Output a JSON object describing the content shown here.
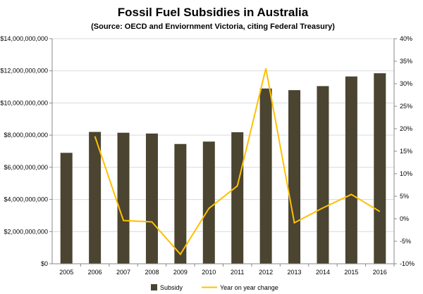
{
  "chart_data": {
    "type": "bar",
    "title": "Fossil Fuel Subsidies in Australia",
    "subtitle": "(Source: OECD and Enviornment Victoria, citing Federal Treasury)",
    "categories": [
      "2005",
      "2006",
      "2007",
      "2008",
      "2009",
      "2010",
      "2011",
      "2012",
      "2013",
      "2014",
      "2015",
      "2016"
    ],
    "series": [
      {
        "name": "Subsidy",
        "type": "bar",
        "axis": "left",
        "color": "#4a4430",
        "values": [
          6900000000,
          8200000000,
          8150000000,
          8100000000,
          7450000000,
          7600000000,
          8180000000,
          10900000000,
          10800000000,
          11050000000,
          11650000000,
          11850000000
        ]
      },
      {
        "name": "Year on year change",
        "type": "line",
        "axis": "right",
        "color": "#ffc000",
        "values": [
          null,
          18.3,
          -0.4,
          -0.7,
          -7.9,
          2.3,
          7.3,
          33.4,
          -0.9,
          2.4,
          5.4,
          1.6
        ]
      }
    ],
    "y_left": {
      "lim": [
        0,
        14000000000
      ],
      "ticks": [
        0,
        2000000000,
        4000000000,
        6000000000,
        8000000000,
        10000000000,
        12000000000,
        14000000000
      ],
      "tick_labels": [
        "$0",
        "$2,000,000,000",
        "$4,000,000,000",
        "$6,000,000,000",
        "$8,000,000,000",
        "$10,000,000,000",
        "$12,000,000,000",
        "$14,000,000,000"
      ]
    },
    "y_right": {
      "lim": [
        -10,
        40
      ],
      "ticks": [
        -10,
        -5,
        0,
        5,
        10,
        15,
        20,
        25,
        30,
        35,
        40
      ],
      "tick_labels": [
        "-10%",
        "-5%",
        "0%",
        "5%",
        "10%",
        "15%",
        "20%",
        "25%",
        "30%",
        "35%",
        "40%"
      ]
    },
    "grid": true,
    "legend_position": "bottom"
  }
}
